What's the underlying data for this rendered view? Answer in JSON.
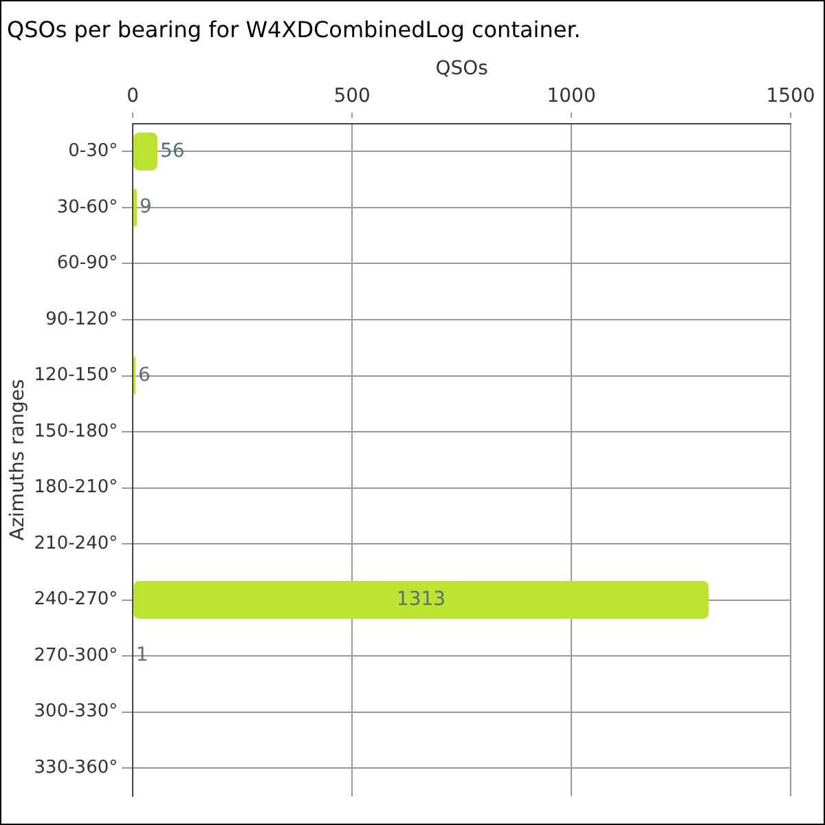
{
  "chart_data": {
    "type": "bar",
    "orientation": "horizontal",
    "title": "QSOs per bearing for W4XDCombinedLog container.",
    "xlabel": "QSOs",
    "ylabel": "Azimuths ranges",
    "categories": [
      "0-30°",
      "30-60°",
      "60-90°",
      "90-120°",
      "120-150°",
      "150-180°",
      "180-210°",
      "210-240°",
      "240-270°",
      "270-300°",
      "300-330°",
      "330-360°"
    ],
    "values": [
      56,
      9,
      0,
      0,
      6,
      0,
      0,
      0,
      1313,
      1,
      0,
      0
    ],
    "value_labels": [
      "56",
      "9",
      null,
      null,
      "6",
      null,
      null,
      null,
      "1313",
      "1",
      null,
      null
    ],
    "color": "#bde330",
    "xlim": [
      0,
      1500
    ],
    "xticks": [
      0,
      500,
      1000,
      1500
    ],
    "grid": true,
    "legend": false
  }
}
